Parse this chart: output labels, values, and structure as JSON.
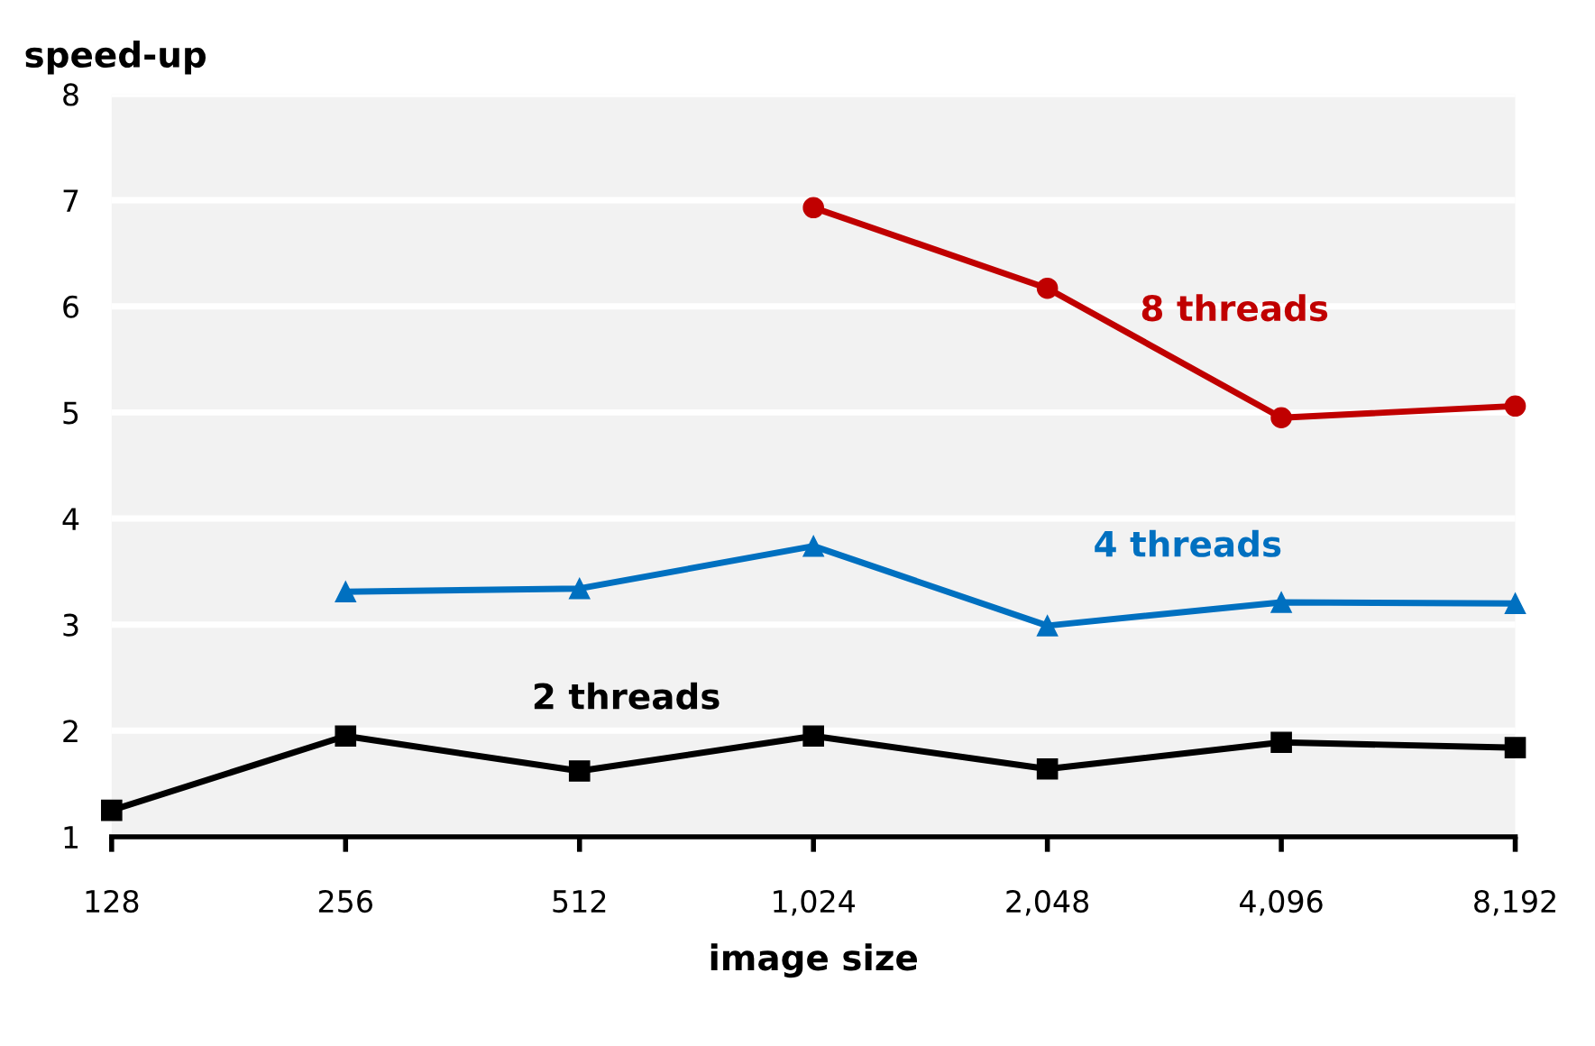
{
  "chart_data": {
    "type": "line",
    "xlabel": "image size",
    "ylabel": "speed-up",
    "categories": [
      "128",
      "256",
      "512",
      "1,024",
      "2,048",
      "4,096",
      "8,192"
    ],
    "series": [
      {
        "name": "2 threads",
        "color": "#000000",
        "marker": "square",
        "values": [
          1.25,
          1.95,
          1.62,
          1.95,
          1.64,
          1.89,
          1.84
        ]
      },
      {
        "name": "4 threads",
        "color": "#0070c0",
        "marker": "triangle",
        "values": [
          null,
          3.31,
          3.34,
          3.74,
          2.99,
          3.21,
          3.2
        ]
      },
      {
        "name": "8 threads",
        "color": "#c00000",
        "marker": "circle",
        "values": [
          null,
          null,
          null,
          6.93,
          6.17,
          4.95,
          5.06
        ]
      }
    ],
    "ylim": [
      1,
      8
    ],
    "yticks": [
      1,
      2,
      3,
      4,
      5,
      6,
      7,
      8
    ],
    "grid": "y",
    "legend": false,
    "line_style": "solid"
  }
}
